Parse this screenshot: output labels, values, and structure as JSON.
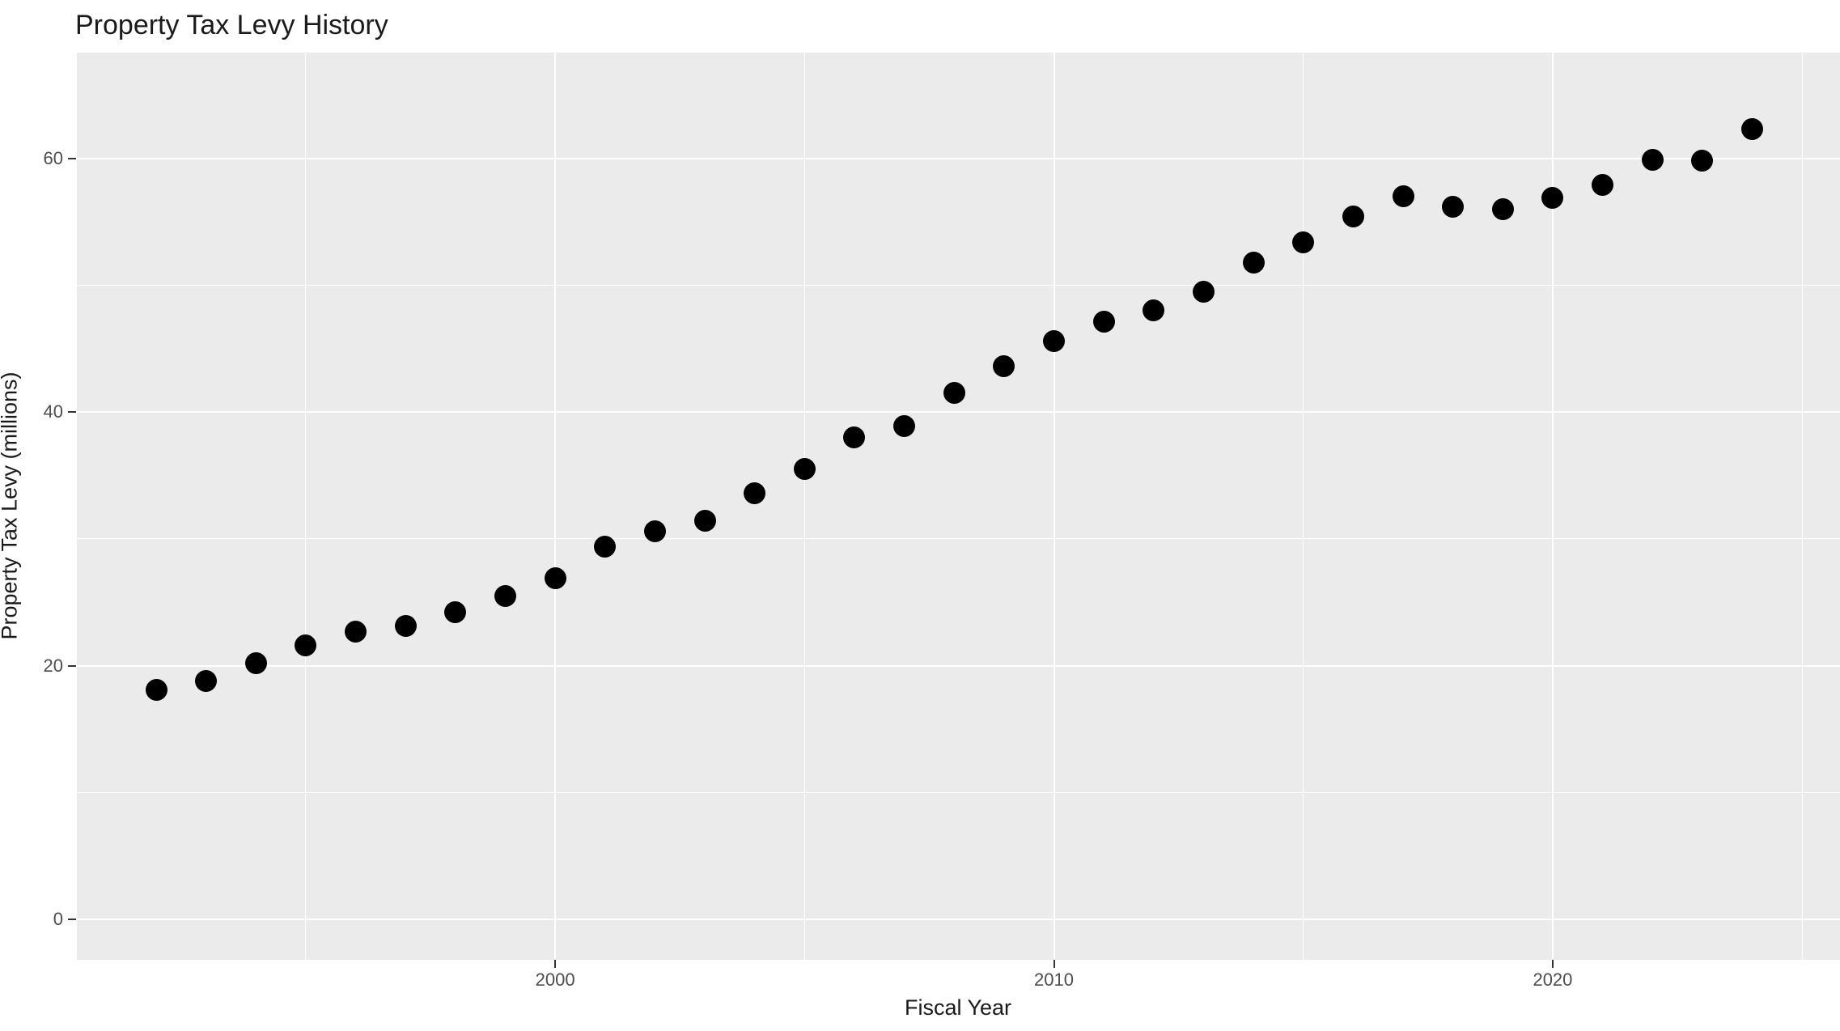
{
  "title": "Property Tax Levy History",
  "chart_data": {
    "type": "scatter",
    "title": "Property Tax Levy History",
    "xlabel": "Fiscal Year",
    "ylabel": "Property Tax Levy (millions)",
    "x": [
      1992,
      1993,
      1994,
      1995,
      1996,
      1997,
      1998,
      1999,
      2000,
      2001,
      2002,
      2003,
      2004,
      2005,
      2006,
      2007,
      2008,
      2009,
      2010,
      2011,
      2012,
      2013,
      2014,
      2015,
      2016,
      2017,
      2018,
      2019,
      2020,
      2021,
      2022,
      2023,
      2024
    ],
    "y": [
      18.1,
      18.8,
      20.2,
      21.6,
      22.7,
      23.1,
      24.2,
      25.5,
      26.9,
      29.4,
      30.6,
      31.4,
      33.6,
      35.5,
      38.0,
      38.9,
      41.5,
      43.6,
      45.6,
      47.1,
      48.0,
      49.5,
      51.8,
      53.4,
      55.4,
      57.0,
      56.2,
      56.0,
      56.9,
      57.9,
      59.9,
      59.8,
      62.3
    ],
    "xlim": [
      1990.41,
      2025.76
    ],
    "ylim": [
      -3.2,
      68.35
    ],
    "x_ticks_major": [
      2000,
      2010,
      2020
    ],
    "x_ticks_minor": [
      1995,
      2005,
      2015,
      2025
    ],
    "y_ticks_major": [
      0,
      20,
      40,
      60
    ],
    "y_ticks_minor": [
      10,
      30,
      50
    ],
    "grid": true,
    "legend": "none",
    "panel_bg": "#EBEBEB",
    "grid_color": "#FFFFFF",
    "point_color": "#000000",
    "tick_label_color": "#4D4D4D"
  }
}
